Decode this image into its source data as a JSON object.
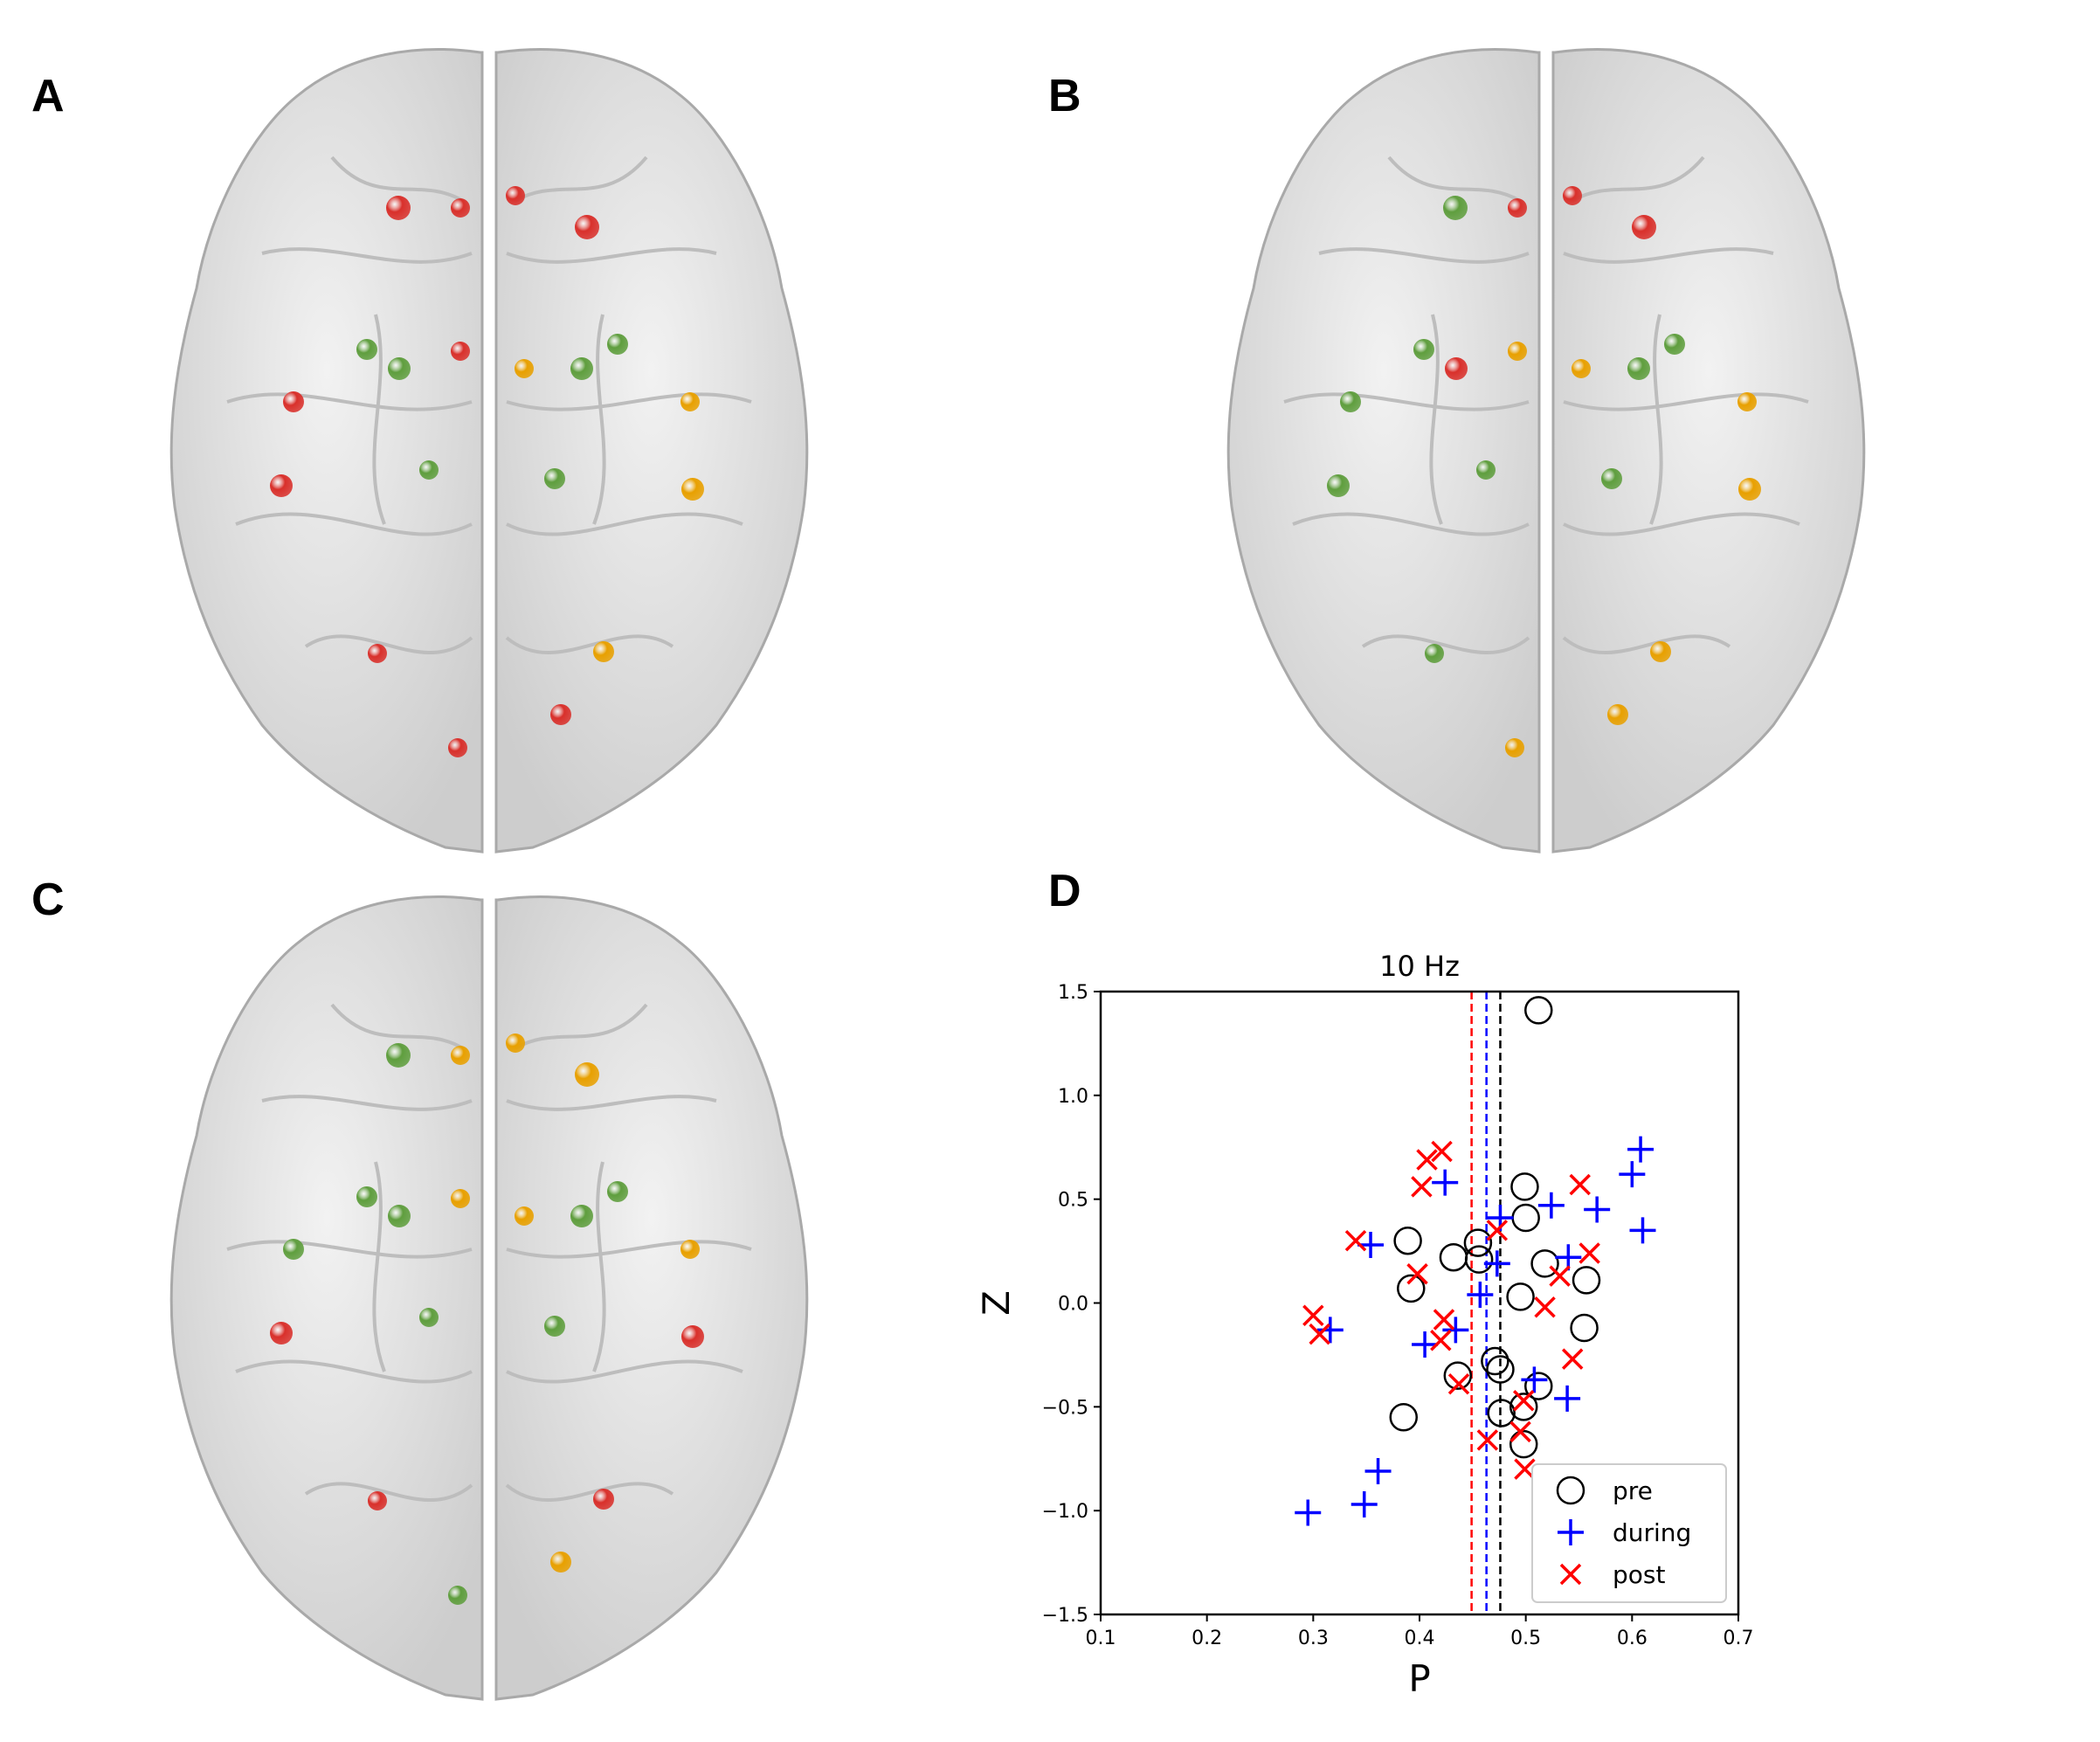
{
  "panels": {
    "A": {
      "label": "A"
    },
    "B": {
      "label": "B"
    },
    "C": {
      "label": "C"
    },
    "D": {
      "label": "D"
    }
  },
  "colors": {
    "red": "#d9302b",
    "green": "#5f9e3e",
    "orange": "#e8a000",
    "pre": "#000000",
    "during": "#0000ff",
    "post": "#ff0000"
  },
  "brains": [
    {
      "panel": "A",
      "nodes": [
        "red",
        "red",
        "red",
        "red",
        "green",
        "green",
        "red",
        "orange",
        "green",
        "green",
        "red",
        "orange",
        "red",
        "green",
        "green",
        "orange",
        "red",
        "orange",
        "red",
        "red"
      ]
    },
    {
      "panel": "B",
      "nodes": [
        "green",
        "red",
        "red",
        "red",
        "green",
        "red",
        "orange",
        "orange",
        "green",
        "green",
        "green",
        "orange",
        "green",
        "green",
        "green",
        "orange",
        "green",
        "orange",
        "orange",
        "orange"
      ]
    },
    {
      "panel": "C",
      "nodes": [
        "green",
        "orange",
        "orange",
        "orange",
        "green",
        "green",
        "orange",
        "orange",
        "green",
        "green",
        "green",
        "orange",
        "red",
        "green",
        "green",
        "red",
        "red",
        "red",
        "green",
        "orange"
      ]
    }
  ],
  "chart_data": {
    "type": "scatter",
    "title": "10 Hz",
    "xlabel": "P",
    "ylabel": "Z",
    "xlim": [
      0.1,
      0.7
    ],
    "ylim": [
      -1.5,
      1.5
    ],
    "xticks": [
      "0.1",
      "0.2",
      "0.3",
      "0.4",
      "0.5",
      "0.6",
      "0.7"
    ],
    "yticks": [
      "−1.5",
      "−1.0",
      "−0.5",
      "0.0",
      "0.5",
      "1.0",
      "1.5"
    ],
    "grid": false,
    "legend_position": "bottom-right",
    "series": [
      {
        "name": "pre",
        "marker": "circle",
        "color": "#000000",
        "mean_line": 0.476,
        "points": [
          [
            0.512,
            1.41
          ],
          [
            0.499,
            0.56
          ],
          [
            0.5,
            0.41
          ],
          [
            0.389,
            0.3
          ],
          [
            0.455,
            0.29
          ],
          [
            0.432,
            0.22
          ],
          [
            0.456,
            0.21
          ],
          [
            0.518,
            0.19
          ],
          [
            0.392,
            0.07
          ],
          [
            0.557,
            0.11
          ],
          [
            0.495,
            0.03
          ],
          [
            0.555,
            -0.12
          ],
          [
            0.471,
            -0.28
          ],
          [
            0.476,
            -0.32
          ],
          [
            0.512,
            -0.4
          ],
          [
            0.436,
            -0.35
          ],
          [
            0.498,
            -0.5
          ],
          [
            0.477,
            -0.53
          ],
          [
            0.385,
            -0.55
          ],
          [
            0.498,
            -0.68
          ]
        ]
      },
      {
        "name": "during",
        "marker": "plus",
        "color": "#0000ff",
        "mean_line": 0.463,
        "points": [
          [
            0.608,
            0.74
          ],
          [
            0.6,
            0.62
          ],
          [
            0.424,
            0.58
          ],
          [
            0.524,
            0.47
          ],
          [
            0.567,
            0.45
          ],
          [
            0.476,
            0.41
          ],
          [
            0.61,
            0.35
          ],
          [
            0.354,
            0.28
          ],
          [
            0.54,
            0.22
          ],
          [
            0.473,
            0.19
          ],
          [
            0.457,
            0.04
          ],
          [
            0.316,
            -0.13
          ],
          [
            0.405,
            -0.2
          ],
          [
            0.434,
            -0.13
          ],
          [
            0.508,
            -0.37
          ],
          [
            0.539,
            -0.46
          ],
          [
            0.361,
            -0.81
          ],
          [
            0.348,
            -0.97
          ],
          [
            0.295,
            -1.01
          ]
        ]
      },
      {
        "name": "post",
        "marker": "x",
        "color": "#ff0000",
        "mean_line": 0.449,
        "points": [
          [
            0.407,
            0.69
          ],
          [
            0.421,
            0.73
          ],
          [
            0.402,
            0.56
          ],
          [
            0.551,
            0.57
          ],
          [
            0.473,
            0.35
          ],
          [
            0.34,
            0.3
          ],
          [
            0.398,
            0.14
          ],
          [
            0.532,
            0.13
          ],
          [
            0.56,
            0.24
          ],
          [
            0.518,
            -0.02
          ],
          [
            0.3,
            -0.06
          ],
          [
            0.306,
            -0.15
          ],
          [
            0.423,
            -0.08
          ],
          [
            0.42,
            -0.18
          ],
          [
            0.437,
            -0.39
          ],
          [
            0.544,
            -0.27
          ],
          [
            0.498,
            -0.47
          ],
          [
            0.495,
            -0.62
          ],
          [
            0.464,
            -0.66
          ],
          [
            0.499,
            -0.8
          ]
        ]
      }
    ]
  }
}
